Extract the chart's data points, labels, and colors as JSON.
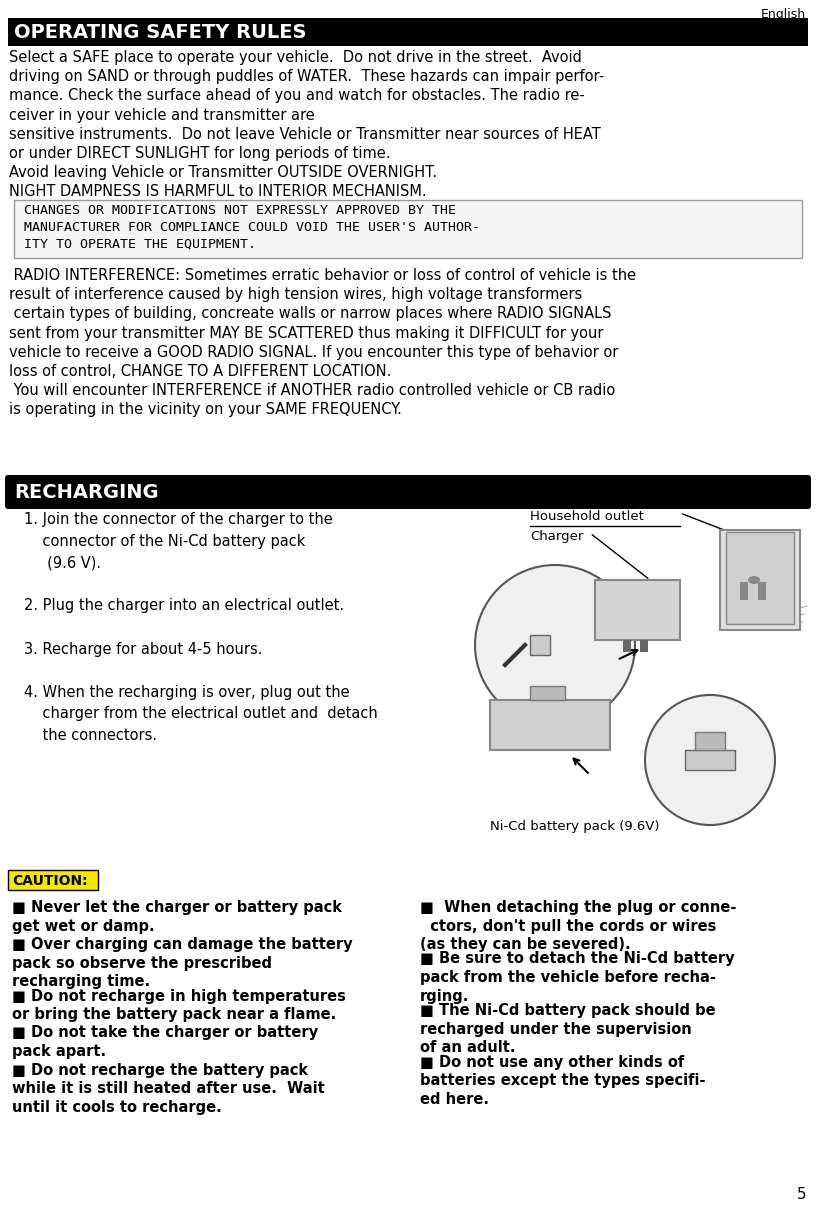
{
  "page_number": "5",
  "english_label": "English",
  "bg_color": "#ffffff",
  "section1_title": "OPERATING SAFETY RULES",
  "section1_title_color": "#ffffff",
  "section1_bg": "#000000",
  "section1_body": "Select a SAFE place to operate your vehicle.  Do not drive in the street.  Avoid\ndriving on SAND or through puddles of WATER.  These hazards can impair perfor-\nmance. Check the surface ahead of you and watch for obstacles. The radio re-\nceiver in your vehicle and transmitter are\nsensitive instruments.  Do not leave Vehicle or Transmitter near sources of HEAT\nor under DIRECT SUNLIGHT for long periods of time.\nAvoid leaving Vehicle or Transmitter OUTSIDE OVERNIGHT.\nNIGHT DAMPNESS IS HARMFUL to INTERIOR MECHANISM.",
  "fcc_box_text": " CHANGES OR MODIFICATIONS NOT EXPRESSLY APPROVED BY THE\n MANUFACTURER FOR COMPLIANCE COULD VOID THE USER'S AUTHOR-\n ITY TO OPERATE THE EQUIPMENT.",
  "fcc_box_bg": "#f5f5f5",
  "fcc_box_border": "#999999",
  "radio_text": " RADIO INTERFERENCE: Sometimes erratic behavior or loss of control of vehicle is the\nresult of interference caused by high tension wires, high voltage transformers\n certain types of building, concreate walls or narrow places where RADIO SIGNALS\nsent from your transmitter MAY BE SCATTERED thus making it DIFFICULT for your\nvehicle to receive a GOOD RADIO SIGNAL. If you encounter this type of behavior or\nloss of control, CHANGE TO A DIFFERENT LOCATION.\n You will encounter INTERFERENCE if ANOTHER radio controlled vehicle or CB radio\nis operating in the vicinity on your SAME FREQUENCY.",
  "section2_title": "RECHARGING",
  "section2_title_color": "#ffffff",
  "section2_bg": "#000000",
  "steps_text": "1. Join the connector of the charger to the\n    connector of the Ni-Cd battery pack\n     (9.6 V).\n\n2. Plug the charger into an electrical outlet.\n\n3. Recharge for about 4-5 hours.\n\n4. When the recharging is over, plug out the\n    charger from the electrical outlet and  detach\n    the connectors.",
  "caution_label": "CAUTION:",
  "caution_label_bg": "#f5e800",
  "caution_left_items": [
    "Never let the charger or battery pack\nget wet or damp.",
    "Over charging can damage the battery\npack so observe the prescribed\nrecharging time.",
    "Do not recharge in high temperatures\nor bring the battery pack near a flame.",
    "Do not take the charger or battery\npack apart.",
    "Do not recharge the battery pack\nwhile it is still heated after use.  Wait\nuntil it cools to recharge."
  ],
  "caution_right_items": [
    " When detaching the plug or conne-\n  ctors, don't pull the cords or wires\n(as they can be severed).",
    "Be sure to detach the Ni-Cd battery\npack from the vehicle before recha-\nrging.",
    "The Ni-Cd battery pack should be\nrecharged under the supervision\nof an adult.",
    "Do not use any other kinds of\nbatteries except the types specifi-\ned here."
  ],
  "diagram_label1": "Household outlet",
  "diagram_label2": "Charger",
  "diagram_label3": "Ni-Cd battery pack (9.6V)",
  "font_size_body": 10.5,
  "font_size_title": 14,
  "font_size_caution": 10.5
}
